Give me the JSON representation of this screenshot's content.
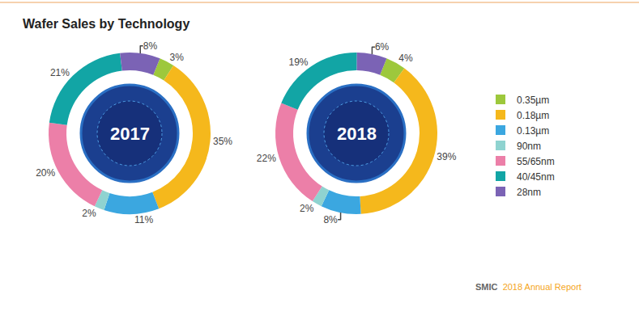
{
  "chart_data": {
    "type": "donut",
    "title": "Wafer Sales by Technology",
    "categories": [
      "0.35µm",
      "0.18µm",
      "0.13µm",
      "90nm",
      "55/65nm",
      "40/45nm",
      "28nm"
    ],
    "colors": [
      "#9dc83c",
      "#f5b81c",
      "#3ba7e0",
      "#8fd3d0",
      "#ec7fa8",
      "#12a5a5",
      "#7b63b5"
    ],
    "series": [
      {
        "name": "2017",
        "values": [
          3,
          35,
          11,
          2,
          20,
          21,
          8
        ],
        "value_labels": [
          "3%",
          "35%",
          "11%",
          "2%",
          "20%",
          "21%",
          "8%"
        ]
      },
      {
        "name": "2018",
        "values": [
          4,
          39,
          8,
          2,
          22,
          19,
          6
        ],
        "value_labels": [
          "4%",
          "39%",
          "8%",
          "2%",
          "22%",
          "19%",
          "6%"
        ]
      }
    ],
    "data_labels": true,
    "legend": "right",
    "source": {
      "company": "SMIC",
      "report": "2018 Annual Report"
    }
  }
}
